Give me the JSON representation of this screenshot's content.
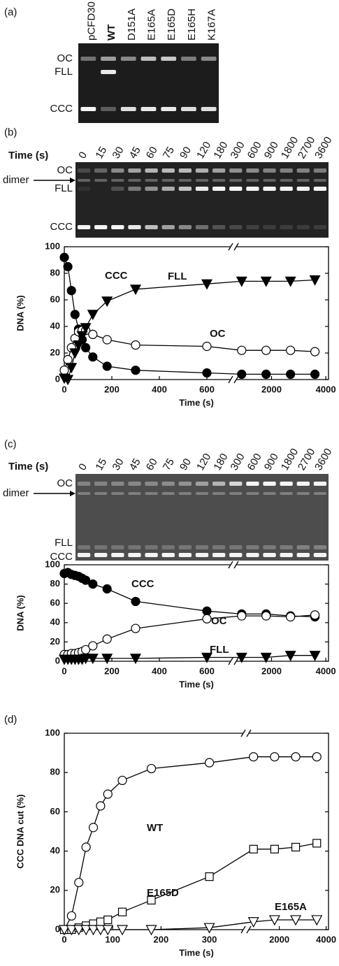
{
  "panel_labels": [
    "(a)",
    "(b)",
    "(c)",
    "(d)"
  ],
  "gels": [
    {
      "lanes": [
        "pCFD30",
        "WT",
        "D151A",
        "E165A",
        "E165D",
        "E165H",
        "K167A"
      ],
      "bold_lane_index": 1,
      "bands": [
        "OC",
        "FLL",
        "CCC"
      ]
    },
    {
      "axis_label": "Time (s)",
      "lanes": [
        "0",
        "15",
        "30",
        "45",
        "60",
        "75",
        "90",
        "120",
        "180",
        "300",
        "600",
        "900",
        "1800",
        "2700",
        "3600"
      ],
      "bands": [
        "OC",
        "FLL",
        "CCC"
      ],
      "arrow_label": "dimer"
    },
    {
      "axis_label": "Time (s)",
      "lanes": [
        "0",
        "15",
        "30",
        "45",
        "60",
        "75",
        "90",
        "120",
        "180",
        "300",
        "600",
        "900",
        "1800",
        "2700",
        "3600"
      ],
      "bands": [
        "OC",
        "FLL",
        "CCC"
      ],
      "arrow_label": "dimer"
    }
  ],
  "chart_data": [
    {
      "type": "line",
      "xlabel": "Time (s)",
      "ylabel": "DNA (%)",
      "broken_x": true,
      "x": [
        0,
        15,
        30,
        45,
        60,
        75,
        90,
        120,
        180,
        300,
        600,
        900,
        1800,
        2700,
        3600
      ],
      "xlim": [
        0,
        700
      ],
      "xlim2": [
        700,
        4100
      ],
      "xticks": [
        0,
        200,
        400,
        600,
        2000,
        4000
      ],
      "ylim": [
        0,
        100
      ],
      "yticks": [
        0,
        20,
        40,
        60,
        80,
        100
      ],
      "series": [
        {
          "name": "CCC",
          "color": "#000000",
          "marker": "filled-circle",
          "values": [
            92,
            85,
            67,
            49,
            38,
            30,
            24,
            17,
            10,
            7,
            5,
            4,
            4,
            4,
            4
          ]
        },
        {
          "name": "OC",
          "color": "#000000",
          "marker": "open-circle",
          "values": [
            7,
            15,
            24,
            31,
            36,
            37,
            37,
            34,
            30,
            26,
            25,
            22,
            22,
            22,
            21
          ]
        },
        {
          "name": "FLL",
          "color": "#000000",
          "marker": "filled-triangle-down",
          "values": [
            1,
            0,
            9,
            20,
            26,
            33,
            39,
            49,
            59,
            68,
            72,
            74,
            74,
            74,
            75
          ]
        }
      ]
    },
    {
      "type": "line",
      "xlabel": "Time (s)",
      "ylabel": "DNA (%)",
      "broken_x": true,
      "x": [
        0,
        15,
        30,
        45,
        60,
        75,
        90,
        120,
        180,
        300,
        600,
        900,
        1800,
        2700,
        3600
      ],
      "xlim": [
        0,
        700
      ],
      "xlim2": [
        700,
        4100
      ],
      "xticks": [
        0,
        200,
        400,
        600,
        2000,
        4000
      ],
      "ylim": [
        0,
        100
      ],
      "yticks": [
        0,
        20,
        40,
        60,
        80,
        100
      ],
      "series": [
        {
          "name": "CCC",
          "color": "#000000",
          "marker": "filled-circle",
          "values": [
            91,
            92,
            90,
            89,
            88,
            86,
            84,
            80,
            75,
            62,
            52,
            49,
            49,
            47,
            46
          ]
        },
        {
          "name": "OC",
          "color": "#000000",
          "marker": "open-circle",
          "values": [
            7,
            7,
            8,
            8,
            9,
            10,
            12,
            16,
            23,
            34,
            44,
            47,
            47,
            46,
            48
          ]
        },
        {
          "name": "FLL",
          "color": "#000000",
          "marker": "filled-triangle-down",
          "values": [
            2,
            2,
            2,
            2,
            2,
            2,
            3,
            3,
            3,
            3,
            4,
            4,
            4,
            6,
            6
          ]
        }
      ]
    },
    {
      "type": "line",
      "xlabel": "Time (s)",
      "ylabel": "CCC DNA cut (%)",
      "broken_x": true,
      "x": [
        0,
        15,
        30,
        45,
        60,
        75,
        90,
        120,
        180,
        300,
        900,
        1800,
        2700,
        3600
      ],
      "xlim": [
        0,
        370
      ],
      "xlim2": [
        700,
        4100
      ],
      "xticks": [
        0,
        100,
        200,
        300,
        2000,
        4000
      ],
      "ylim": [
        0,
        100
      ],
      "yticks": [
        0,
        20,
        40,
        60,
        80,
        100
      ],
      "series": [
        {
          "name": "WT",
          "color": "#000000",
          "marker": "open-circle",
          "values": [
            0,
            7,
            24,
            42,
            52,
            63,
            69,
            76,
            82,
            85,
            88,
            88,
            88,
            88
          ]
        },
        {
          "name": "E165D",
          "color": "#000000",
          "marker": "open-square",
          "values": [
            0,
            0,
            1,
            2,
            3,
            4,
            5,
            9,
            15,
            27,
            41,
            41,
            42,
            44
          ]
        },
        {
          "name": "E165A",
          "color": "#000000",
          "marker": "open-triangle-down",
          "values": [
            0,
            0,
            0,
            0,
            0,
            0,
            0,
            0,
            0,
            1,
            4,
            5,
            5,
            5
          ]
        }
      ]
    }
  ]
}
